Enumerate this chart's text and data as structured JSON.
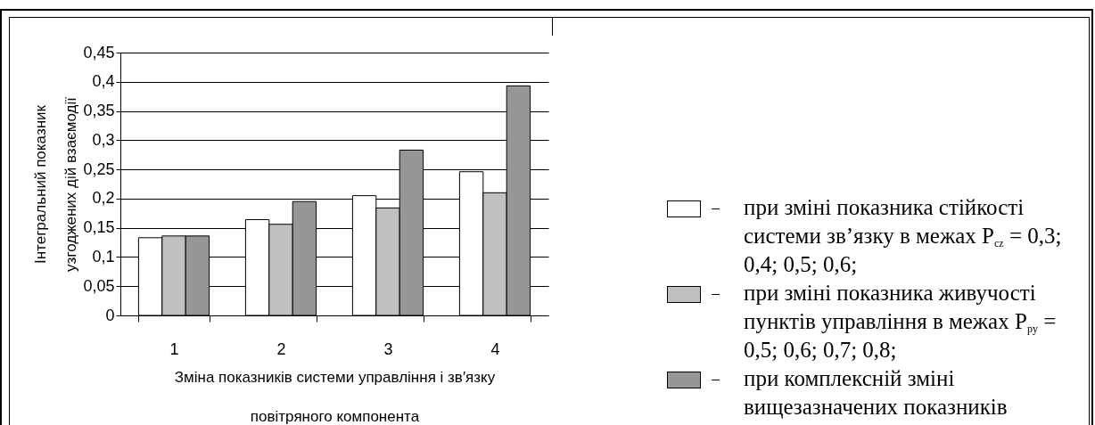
{
  "chart_data": {
    "type": "bar",
    "xlabel": "Зміна показників системи управління і зв′язку\nповітряного компонента",
    "ylabel": "Інтегральний показник\nузгоджених дій взаємодії",
    "categories": [
      "1",
      "2",
      "3",
      "4"
    ],
    "series": [
      {
        "name": "при зміні показника стійкості системи зв’язку в межах P$_{cz}$ = 0,3; 0,4; 0,5; 0,6;",
        "color": "#ffffff",
        "values": [
          0.133,
          0.164,
          0.205,
          0.246
        ]
      },
      {
        "name": "при зміні показника живучості пунктів управління в межах P$_{py}$ = 0,5; 0,6; 0,7; 0,8;",
        "color": "#c0c0c0",
        "values": [
          0.136,
          0.156,
          0.184,
          0.21
        ]
      },
      {
        "name": "при комплексній зміні вищезазначених показників",
        "color": "#969696",
        "values": [
          0.136,
          0.195,
          0.283,
          0.393
        ]
      }
    ],
    "ylim": [
      0,
      0.45
    ],
    "yticks": [
      {
        "value": 0,
        "label": "0"
      },
      {
        "value": 0.05,
        "label": "0,05"
      },
      {
        "value": 0.1,
        "label": "0,1"
      },
      {
        "value": 0.15,
        "label": "0,15"
      },
      {
        "value": 0.2,
        "label": "0,2"
      },
      {
        "value": 0.25,
        "label": "0,25"
      },
      {
        "value": 0.3,
        "label": "0,3"
      },
      {
        "value": 0.35,
        "label": "0,35"
      },
      {
        "value": 0.4,
        "label": "0,4"
      },
      {
        "value": 0.45,
        "label": "0,45"
      }
    ],
    "grid": "y",
    "legend": "right"
  }
}
